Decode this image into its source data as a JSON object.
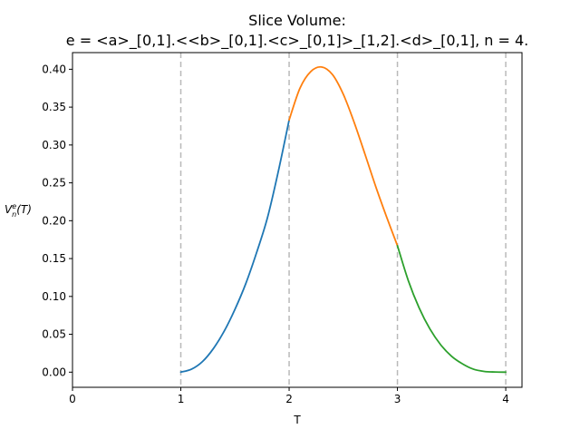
{
  "chart_data": {
    "type": "line",
    "title": "Slice Volume:",
    "subtitle": "e = <a>_[0,1].<<b>_[0,1].<c>_[0,1]>_[1,2].<d>_[0,1], n = 4.",
    "xlabel": "T",
    "ylabel": {
      "base": "V",
      "superscript": "e",
      "subscript": "n",
      "suffix": "(T)"
    },
    "xlim": [
      0,
      4.15
    ],
    "ylim": [
      -0.02,
      0.422
    ],
    "xticks": [
      0,
      1,
      2,
      3,
      4
    ],
    "xtick_labels": [
      "0",
      "1",
      "2",
      "3",
      "4"
    ],
    "yticks": [
      0.0,
      0.05,
      0.1,
      0.15,
      0.2,
      0.25,
      0.3,
      0.35,
      0.4
    ],
    "ytick_labels": [
      "0.00",
      "0.05",
      "0.10",
      "0.15",
      "0.20",
      "0.25",
      "0.30",
      "0.35",
      "0.40"
    ],
    "vlines": [
      1,
      2,
      3,
      4
    ],
    "grid": false,
    "series": [
      {
        "color": "#1f77b4",
        "x": [
          1.0,
          1.1,
          1.2,
          1.3,
          1.4,
          1.5,
          1.6,
          1.7,
          1.8,
          1.9,
          2.0
        ],
        "y": [
          0.0,
          0.004,
          0.014,
          0.031,
          0.054,
          0.083,
          0.117,
          0.158,
          0.204,
          0.265,
          0.333
        ]
      },
      {
        "color": "#ff7f0e",
        "x": [
          2.0,
          2.1,
          2.2,
          2.3,
          2.4,
          2.5,
          2.6,
          2.7,
          2.8,
          2.9,
          3.0
        ],
        "y": [
          0.333,
          0.375,
          0.397,
          0.403,
          0.393,
          0.367,
          0.33,
          0.288,
          0.245,
          0.205,
          0.167
        ]
      },
      {
        "color": "#2ca02c",
        "x": [
          3.0,
          3.1,
          3.2,
          3.3,
          3.4,
          3.5,
          3.6,
          3.7,
          3.8,
          3.9,
          4.0
        ],
        "y": [
          0.167,
          0.121,
          0.085,
          0.057,
          0.036,
          0.021,
          0.011,
          0.004,
          0.001,
          0.0002,
          0.0
        ]
      }
    ]
  }
}
